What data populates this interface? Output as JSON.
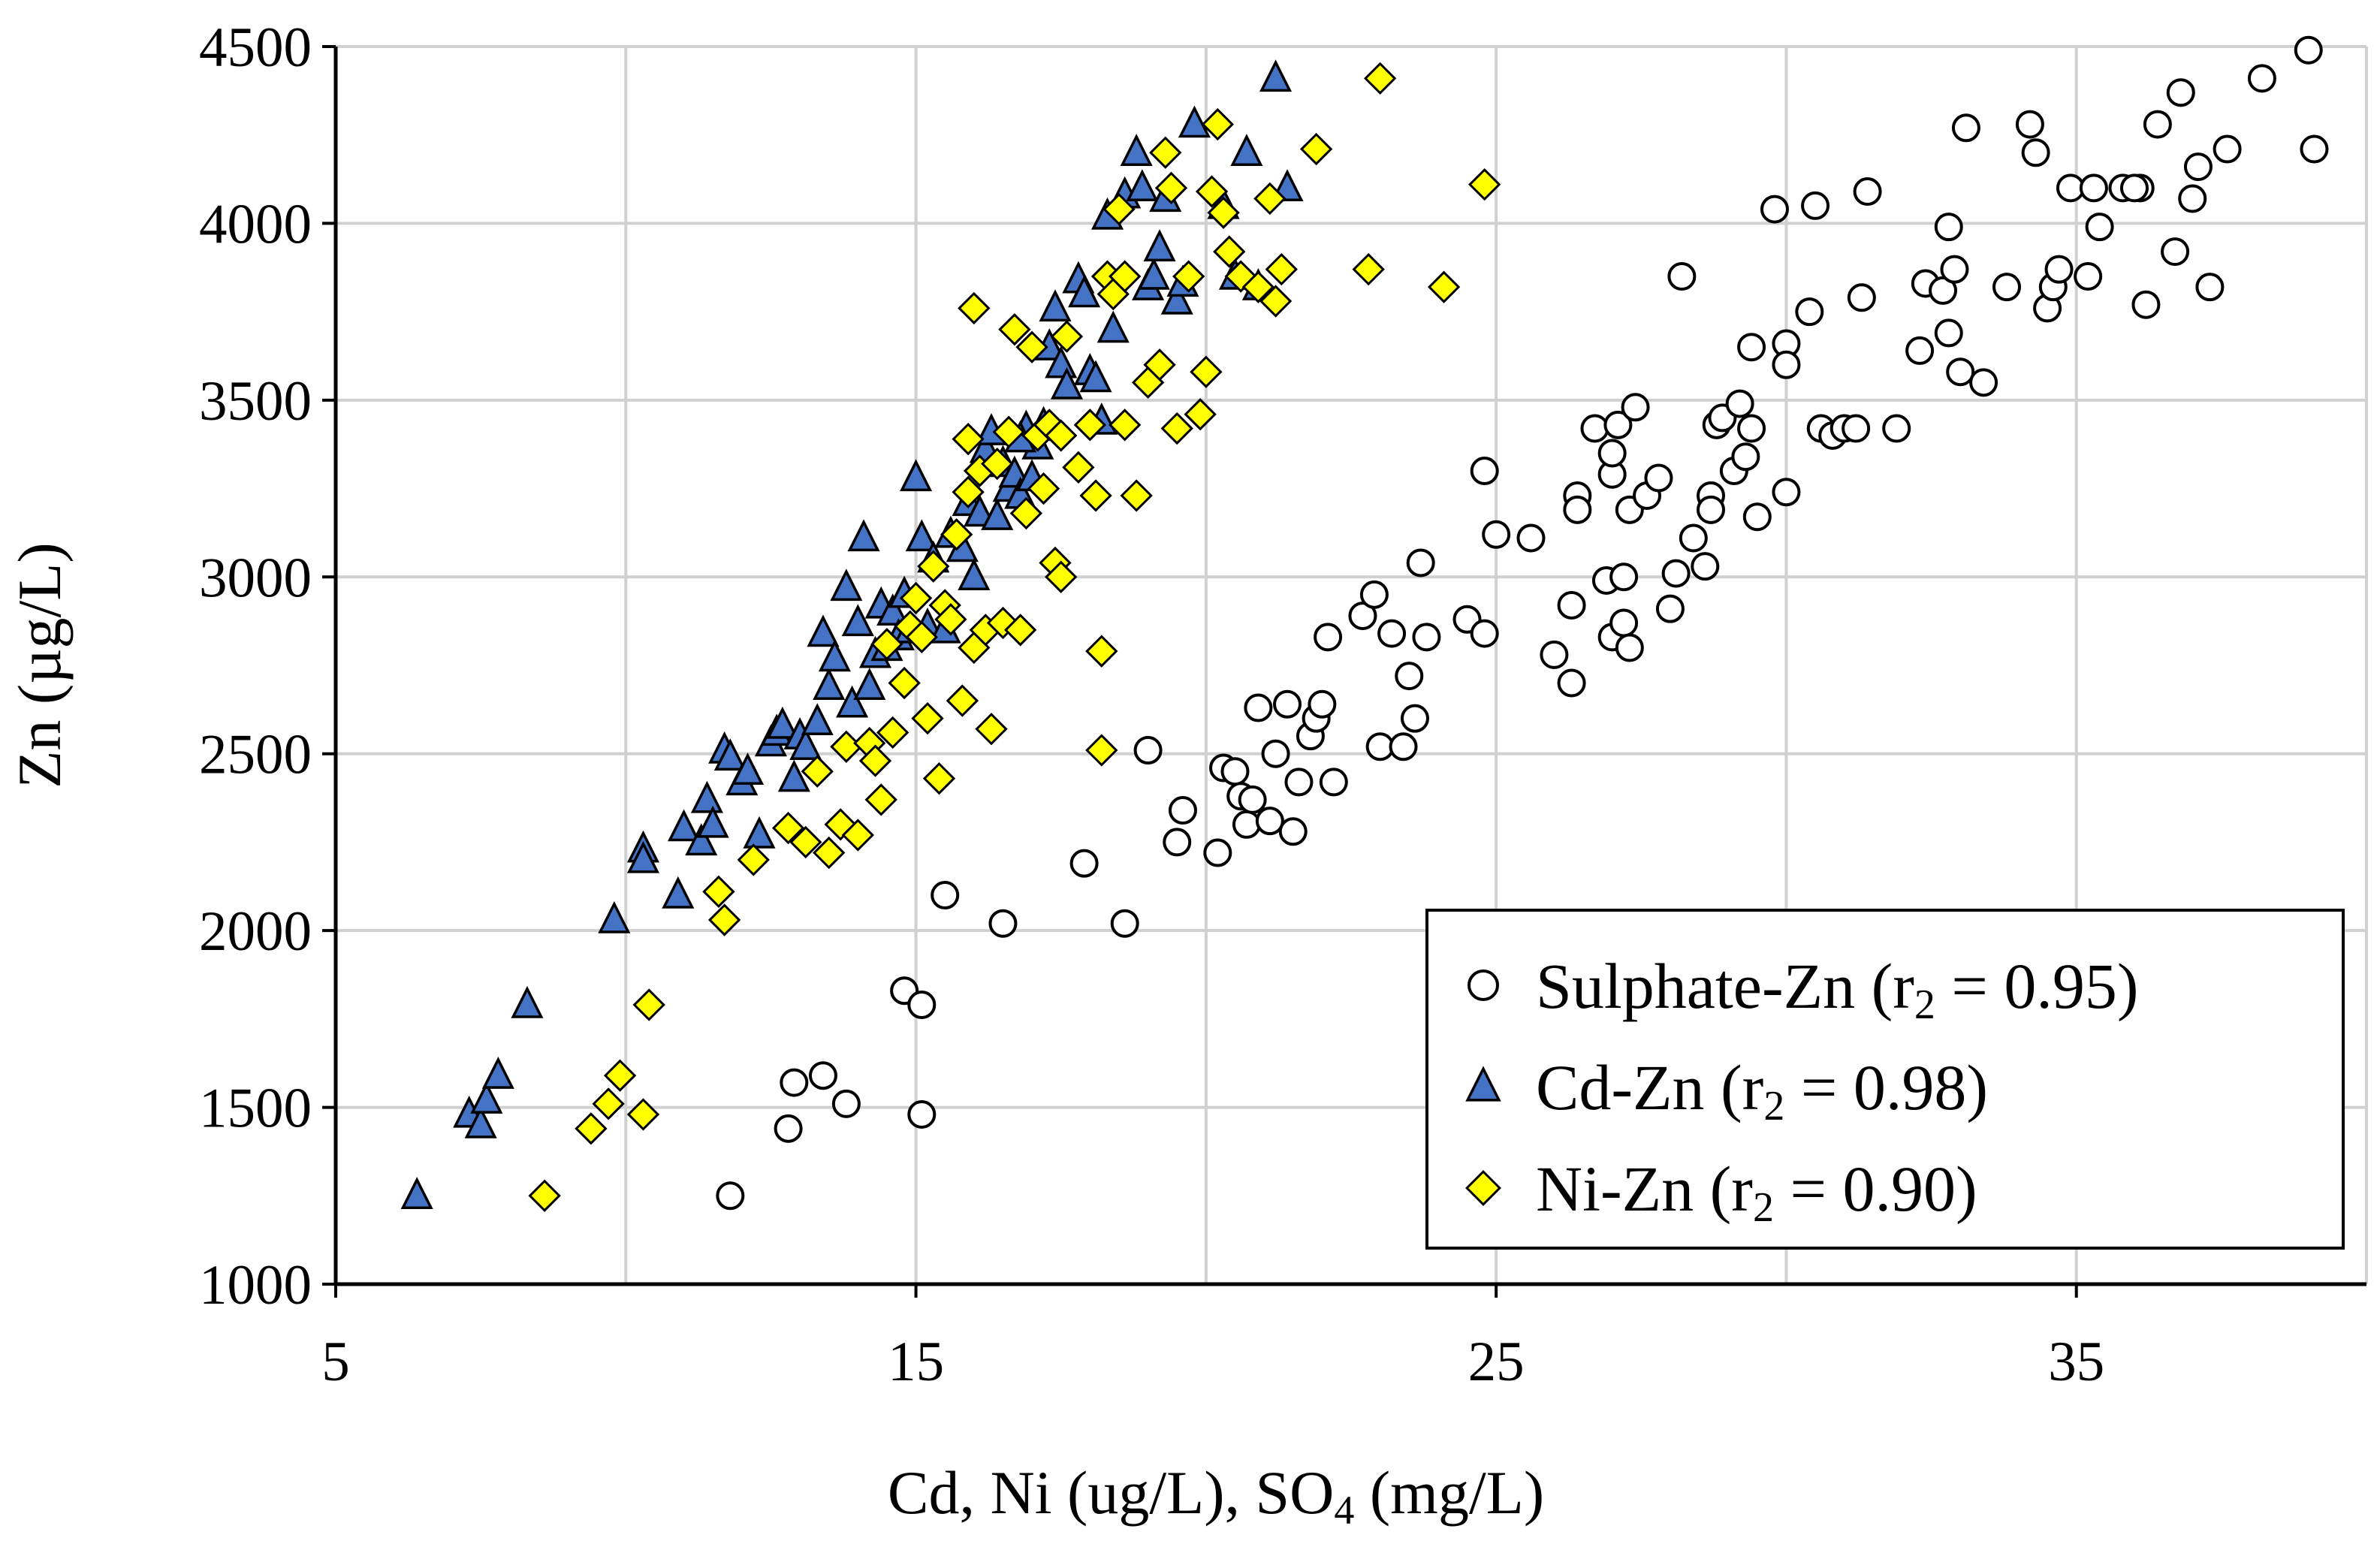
{
  "chart_data": {
    "type": "scatter",
    "title": "",
    "xlabel": "Cd, Ni (ug/L), SO4 (mg/L)",
    "xlabel_parts": {
      "main": "Cd, Ni (ug/L), SO",
      "sub": "4",
      "tail": " (mg/L)"
    },
    "ylabel": "Zn (µg/L)",
    "xlim": [
      5,
      40
    ],
    "ylim": [
      1000,
      4500
    ],
    "xticks": [
      5,
      15,
      25,
      35
    ],
    "yticks": [
      1000,
      1500,
      2000,
      2500,
      3000,
      3500,
      4000,
      4500
    ],
    "grid": true,
    "legend_position": "bottom-right",
    "series": [
      {
        "name": "Sulphate-Zn",
        "r_label": "r",
        "r_sub": "2",
        "r_value": " = 0.95)",
        "marker": "circle",
        "fill": "#ffffff",
        "stroke": "#000000",
        "points": [
          [
            11.8,
            1250
          ],
          [
            12.8,
            1440
          ],
          [
            12.9,
            1570
          ],
          [
            13.4,
            1590
          ],
          [
            13.8,
            1510
          ],
          [
            14.8,
            1830
          ],
          [
            15.1,
            1790
          ],
          [
            15.1,
            1480
          ],
          [
            15.5,
            2100
          ],
          [
            16.5,
            2020
          ],
          [
            17.9,
            2190
          ],
          [
            18.6,
            2020
          ],
          [
            19.0,
            2510
          ],
          [
            19.6,
            2340
          ],
          [
            19.5,
            2250
          ],
          [
            20.2,
            2220
          ],
          [
            20.3,
            2460
          ],
          [
            20.5,
            2450
          ],
          [
            20.6,
            2380
          ],
          [
            20.7,
            2300
          ],
          [
            20.8,
            2370
          ],
          [
            20.9,
            2630
          ],
          [
            21.1,
            2310
          ],
          [
            21.2,
            2500
          ],
          [
            21.4,
            2640
          ],
          [
            21.5,
            2280
          ],
          [
            21.6,
            2420
          ],
          [
            21.8,
            2550
          ],
          [
            21.9,
            2600
          ],
          [
            22.0,
            2640
          ],
          [
            22.1,
            2830
          ],
          [
            22.2,
            2420
          ],
          [
            22.7,
            2890
          ],
          [
            22.9,
            2950
          ],
          [
            23.0,
            2520
          ],
          [
            23.2,
            2840
          ],
          [
            23.4,
            2520
          ],
          [
            23.5,
            2720
          ],
          [
            23.6,
            2600
          ],
          [
            23.7,
            3040
          ],
          [
            23.8,
            2830
          ],
          [
            24.5,
            2880
          ],
          [
            24.8,
            3300
          ],
          [
            24.8,
            2840
          ],
          [
            25.0,
            3120
          ],
          [
            25.6,
            3110
          ],
          [
            26.0,
            2780
          ],
          [
            26.3,
            2700
          ],
          [
            26.3,
            2920
          ],
          [
            26.4,
            3230
          ],
          [
            26.4,
            3190
          ],
          [
            26.7,
            3420
          ],
          [
            26.9,
            2990
          ],
          [
            27.0,
            2830
          ],
          [
            27.0,
            3290
          ],
          [
            27.0,
            3350
          ],
          [
            27.1,
            3430
          ],
          [
            27.2,
            2870
          ],
          [
            27.2,
            3000
          ],
          [
            27.3,
            3190
          ],
          [
            27.3,
            2800
          ],
          [
            27.4,
            3480
          ],
          [
            27.6,
            3230
          ],
          [
            27.8,
            3280
          ],
          [
            28.0,
            2910
          ],
          [
            28.1,
            3010
          ],
          [
            28.2,
            3850
          ],
          [
            28.4,
            3110
          ],
          [
            28.6,
            3030
          ],
          [
            28.7,
            3230
          ],
          [
            28.7,
            3190
          ],
          [
            28.8,
            3430
          ],
          [
            28.9,
            3450
          ],
          [
            29.1,
            3300
          ],
          [
            29.2,
            3490
          ],
          [
            29.3,
            3340
          ],
          [
            29.4,
            3420
          ],
          [
            29.5,
            3170
          ],
          [
            29.8,
            4040
          ],
          [
            30.0,
            3240
          ],
          [
            30.0,
            3660
          ],
          [
            30.0,
            3600
          ],
          [
            30.4,
            3750
          ],
          [
            30.5,
            4050
          ],
          [
            30.6,
            3420
          ],
          [
            30.8,
            3400
          ],
          [
            31.0,
            3420
          ],
          [
            31.3,
            3790
          ],
          [
            31.4,
            4090
          ],
          [
            31.9,
            3420
          ],
          [
            32.3,
            3640
          ],
          [
            32.4,
            3830
          ],
          [
            32.7,
            3810
          ],
          [
            32.8,
            3990
          ],
          [
            32.8,
            3690
          ],
          [
            32.9,
            3870
          ],
          [
            33.0,
            3580
          ],
          [
            33.4,
            3550
          ],
          [
            33.8,
            3820
          ],
          [
            34.2,
            4280
          ],
          [
            34.3,
            4200
          ],
          [
            34.5,
            3760
          ],
          [
            34.6,
            3820
          ],
          [
            34.7,
            3870
          ],
          [
            34.9,
            4100
          ],
          [
            35.2,
            3850
          ],
          [
            35.3,
            4100
          ],
          [
            35.4,
            3990
          ],
          [
            35.8,
            4100
          ],
          [
            36.1,
            4100
          ],
          [
            36.2,
            3770
          ],
          [
            36.4,
            4280
          ],
          [
            36.7,
            3920
          ],
          [
            36.8,
            4370
          ],
          [
            37.0,
            4070
          ],
          [
            37.1,
            4160
          ],
          [
            37.3,
            3820
          ],
          [
            37.6,
            4210
          ],
          [
            38.2,
            4410
          ],
          [
            39.0,
            4490
          ],
          [
            39.1,
            4210
          ],
          [
            33.1,
            4270
          ],
          [
            36.0,
            4100
          ],
          [
            29.4,
            3650
          ],
          [
            31.2,
            3420
          ]
        ]
      },
      {
        "name": "Cd-Zn",
        "r_label": "r",
        "r_sub": "2",
        "r_value": " = 0.98)",
        "marker": "triangle",
        "fill": "#4472c4",
        "stroke": "#000000",
        "points": [
          [
            6.4,
            1250
          ],
          [
            7.3,
            1480
          ],
          [
            7.5,
            1450
          ],
          [
            7.6,
            1520
          ],
          [
            7.8,
            1590
          ],
          [
            8.3,
            1790
          ],
          [
            9.8,
            2030
          ],
          [
            10.3,
            2230
          ],
          [
            10.3,
            2200
          ],
          [
            10.9,
            2100
          ],
          [
            11.0,
            2290
          ],
          [
            11.3,
            2250
          ],
          [
            11.4,
            2370
          ],
          [
            11.5,
            2300
          ],
          [
            11.7,
            2510
          ],
          [
            11.8,
            2490
          ],
          [
            12.0,
            2420
          ],
          [
            12.1,
            2450
          ],
          [
            12.3,
            2270
          ],
          [
            12.5,
            2530
          ],
          [
            12.6,
            2560
          ],
          [
            12.7,
            2580
          ],
          [
            12.9,
            2430
          ],
          [
            13.0,
            2550
          ],
          [
            13.1,
            2520
          ],
          [
            13.3,
            2590
          ],
          [
            13.4,
            2840
          ],
          [
            13.5,
            2690
          ],
          [
            13.6,
            2770
          ],
          [
            13.8,
            2970
          ],
          [
            13.9,
            2640
          ],
          [
            14.0,
            2870
          ],
          [
            14.1,
            3110
          ],
          [
            14.2,
            2690
          ],
          [
            14.3,
            2780
          ],
          [
            14.4,
            2920
          ],
          [
            14.5,
            2800
          ],
          [
            14.6,
            2900
          ],
          [
            14.7,
            2830
          ],
          [
            14.8,
            2950
          ],
          [
            14.9,
            2850
          ],
          [
            15.0,
            3280
          ],
          [
            15.1,
            3110
          ],
          [
            15.2,
            2860
          ],
          [
            15.3,
            3050
          ],
          [
            15.5,
            2850
          ],
          [
            15.6,
            3120
          ],
          [
            15.8,
            3080
          ],
          [
            15.9,
            3210
          ],
          [
            16.0,
            3000
          ],
          [
            16.1,
            3180
          ],
          [
            16.2,
            3360
          ],
          [
            16.3,
            3410
          ],
          [
            16.4,
            3170
          ],
          [
            16.5,
            3320
          ],
          [
            16.6,
            3250
          ],
          [
            16.7,
            3290
          ],
          [
            16.8,
            3230
          ],
          [
            16.9,
            3420
          ],
          [
            17.0,
            3280
          ],
          [
            17.1,
            3370
          ],
          [
            17.2,
            3430
          ],
          [
            17.3,
            3650
          ],
          [
            17.4,
            3760
          ],
          [
            17.5,
            3600
          ],
          [
            17.6,
            3540
          ],
          [
            17.8,
            3840
          ],
          [
            17.9,
            3800
          ],
          [
            18.0,
            3580
          ],
          [
            18.1,
            3560
          ],
          [
            18.2,
            3440
          ],
          [
            18.4,
            3700
          ],
          [
            18.6,
            4080
          ],
          [
            18.8,
            4200
          ],
          [
            18.9,
            4100
          ],
          [
            19.0,
            3820
          ],
          [
            19.1,
            3850
          ],
          [
            19.2,
            3930
          ],
          [
            19.3,
            4070
          ],
          [
            19.5,
            3780
          ],
          [
            19.6,
            3830
          ],
          [
            19.8,
            4280
          ],
          [
            20.3,
            4050
          ],
          [
            20.5,
            3850
          ],
          [
            20.7,
            4200
          ],
          [
            20.9,
            3820
          ],
          [
            21.2,
            4410
          ],
          [
            21.4,
            4100
          ],
          [
            18.3,
            4020
          ],
          [
            16.8,
            3390
          ]
        ]
      },
      {
        "name": "Ni-Zn",
        "r_label": "r",
        "r_sub": "2",
        "r_value": " = 0.90)",
        "marker": "diamond",
        "fill": "#ffff00",
        "stroke": "#000000",
        "points": [
          [
            8.6,
            1250
          ],
          [
            9.4,
            1440
          ],
          [
            9.7,
            1510
          ],
          [
            9.9,
            1590
          ],
          [
            10.3,
            1480
          ],
          [
            10.4,
            1790
          ],
          [
            11.6,
            2110
          ],
          [
            11.7,
            2030
          ],
          [
            12.2,
            2200
          ],
          [
            12.8,
            2290
          ],
          [
            13.1,
            2250
          ],
          [
            13.3,
            2450
          ],
          [
            13.5,
            2220
          ],
          [
            13.7,
            2300
          ],
          [
            13.8,
            2520
          ],
          [
            14.0,
            2270
          ],
          [
            14.2,
            2530
          ],
          [
            14.3,
            2480
          ],
          [
            14.4,
            2370
          ],
          [
            14.5,
            2810
          ],
          [
            14.6,
            2560
          ],
          [
            14.8,
            2700
          ],
          [
            14.9,
            2860
          ],
          [
            15.0,
            2940
          ],
          [
            15.1,
            2830
          ],
          [
            15.2,
            2600
          ],
          [
            15.3,
            3030
          ],
          [
            15.4,
            2430
          ],
          [
            15.5,
            2920
          ],
          [
            15.6,
            2880
          ],
          [
            15.7,
            3120
          ],
          [
            15.8,
            2650
          ],
          [
            15.9,
            3240
          ],
          [
            16.0,
            2800
          ],
          [
            16.1,
            3300
          ],
          [
            16.2,
            2850
          ],
          [
            16.3,
            2570
          ],
          [
            16.4,
            3320
          ],
          [
            16.5,
            2870
          ],
          [
            16.6,
            3410
          ],
          [
            16.7,
            3700
          ],
          [
            16.8,
            2850
          ],
          [
            16.9,
            3180
          ],
          [
            17.0,
            3650
          ],
          [
            17.1,
            3400
          ],
          [
            17.2,
            3250
          ],
          [
            17.3,
            3430
          ],
          [
            17.4,
            3040
          ],
          [
            17.5,
            3000
          ],
          [
            17.6,
            3680
          ],
          [
            17.8,
            3310
          ],
          [
            18.0,
            3430
          ],
          [
            18.1,
            3230
          ],
          [
            18.2,
            2790
          ],
          [
            18.2,
            2510
          ],
          [
            18.3,
            3850
          ],
          [
            18.4,
            3800
          ],
          [
            18.5,
            4040
          ],
          [
            18.6,
            3430
          ],
          [
            18.8,
            3230
          ],
          [
            19.0,
            3550
          ],
          [
            19.2,
            3600
          ],
          [
            19.3,
            4200
          ],
          [
            19.4,
            4100
          ],
          [
            19.5,
            3420
          ],
          [
            19.7,
            3850
          ],
          [
            19.9,
            3460
          ],
          [
            20.0,
            3580
          ],
          [
            20.1,
            4090
          ],
          [
            20.2,
            4280
          ],
          [
            20.3,
            4030
          ],
          [
            20.4,
            3920
          ],
          [
            20.6,
            3850
          ],
          [
            20.9,
            3820
          ],
          [
            21.1,
            4070
          ],
          [
            21.2,
            3780
          ],
          [
            21.3,
            3870
          ],
          [
            21.9,
            4210
          ],
          [
            22.8,
            3870
          ],
          [
            23.0,
            4410
          ],
          [
            24.1,
            3820
          ],
          [
            24.8,
            4110
          ],
          [
            16.0,
            3760
          ],
          [
            15.9,
            3390
          ],
          [
            18.6,
            3850
          ],
          [
            17.5,
            3400
          ]
        ]
      }
    ]
  }
}
